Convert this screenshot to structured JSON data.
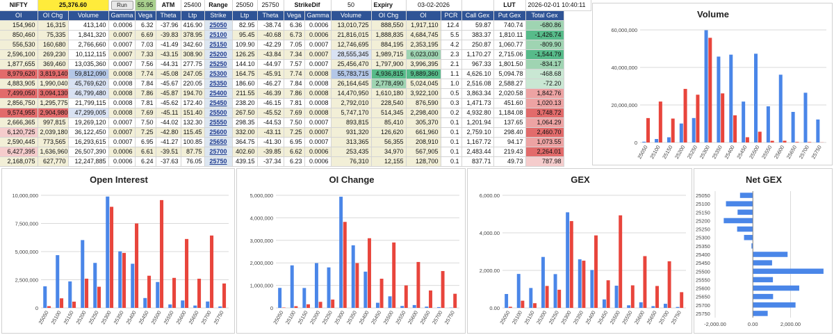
{
  "header": {
    "symbol": "NIFTY",
    "spot": "25,376.60",
    "run_label": "Run",
    "spot_change": "55.95",
    "atm_label": "ATM",
    "atm_value": "25400",
    "range_label": "Range",
    "range_low": "25050",
    "range_high": "25750",
    "strikedif_label": "StrikeDif",
    "strikedif_value": "50",
    "expiry_label": "Expiry",
    "expiry_value": "03-02-2026",
    "lut_label": "LUT",
    "lut_value": "2026-02-01 10:40:11"
  },
  "columns": [
    "OI",
    "OI Chg",
    "Volume",
    "Gamma",
    "Vega",
    "Theta",
    "Ltp",
    "Strike",
    "Ltp",
    "Theta",
    "Vega",
    "Gamma",
    "Volume",
    "OI Chg",
    "OI",
    "PCR",
    "Call Gex",
    "Put Gex",
    "Total Gex"
  ],
  "rows": [
    [
      "154,960",
      "16,315",
      "413,140",
      "0.0006",
      "6.32",
      "-37.96",
      "416.90",
      "25050",
      "82.95",
      "-38.74",
      "6.36",
      "0.0006",
      "13,010,725",
      "888,550",
      "1,917,110",
      "12.4",
      "59.87",
      "740.74",
      "-680.86"
    ],
    [
      "850,460",
      "75,335",
      "1,841,320",
      "0.0007",
      "6.69",
      "-39.83",
      "378.95",
      "25100",
      "95.45",
      "-40.68",
      "6.73",
      "0.0006",
      "21,816,015",
      "1,888,835",
      "4,684,745",
      "5.5",
      "383.37",
      "1,810.11",
      "-1,426.74"
    ],
    [
      "556,530",
      "160,680",
      "2,766,660",
      "0.0007",
      "7.03",
      "-41.49",
      "342.60",
      "25150",
      "109.90",
      "-42.29",
      "7.05",
      "0.0007",
      "12,746,695",
      "884,195",
      "2,353,195",
      "4.2",
      "250.87",
      "1,060.77",
      "-809.90"
    ],
    [
      "2,596,100",
      "269,230",
      "10,112,115",
      "0.0007",
      "7.33",
      "-43.15",
      "308.90",
      "25200",
      "126.25",
      "-43.84",
      "7.34",
      "0.0007",
      "28,555,345",
      "1,989,715",
      "6,023,030",
      "2.3",
      "1,170.27",
      "2,715.06",
      "-1,544.79"
    ],
    [
      "1,877,655",
      "369,460",
      "13,035,360",
      "0.0007",
      "7.56",
      "-44.31",
      "277.75",
      "25250",
      "144.10",
      "-44.97",
      "7.57",
      "0.0007",
      "25,456,470",
      "1,797,900",
      "3,996,395",
      "2.1",
      "967.33",
      "1,801.50",
      "-834.17"
    ],
    [
      "8,979,620",
      "3,819,140",
      "59,812,090",
      "0.0008",
      "7.74",
      "-45.08",
      "247.05",
      "25300",
      "164.75",
      "-45.91",
      "7.74",
      "0.0008",
      "55,783,715",
      "4,936,815",
      "9,889,360",
      "1.1",
      "4,626.10",
      "5,094.78",
      "-468.68"
    ],
    [
      "4,883,905",
      "1,990,040",
      "45,769,620",
      "0.0008",
      "7.84",
      "-45.67",
      "220.05",
      "25350",
      "186.60",
      "-46.27",
      "7.84",
      "0.0008",
      "26,164,645",
      "2,778,490",
      "5,024,045",
      "1.0",
      "2,516.08",
      "2,588.27",
      "-72.20"
    ],
    [
      "7,499,050",
      "3,094,130",
      "46,799,480",
      "0.0008",
      "7.86",
      "-45.87",
      "194.70",
      "25400",
      "211.55",
      "-46.39",
      "7.86",
      "0.0008",
      "14,470,950",
      "1,610,180",
      "3,922,100",
      "0.5",
      "3,863.34",
      "2,020.58",
      "1,842.76"
    ],
    [
      "2,856,750",
      "1,295,775",
      "21,799,115",
      "0.0008",
      "7.81",
      "-45.62",
      "172.40",
      "25450",
      "238.20",
      "-46.15",
      "7.81",
      "0.0008",
      "2,792,010",
      "228,540",
      "876,590",
      "0.3",
      "1,471.73",
      "451.60",
      "1,020.13"
    ],
    [
      "9,574,955",
      "2,904,980",
      "47,299,005",
      "0.0008",
      "7.69",
      "-45.11",
      "151.40",
      "25500",
      "267.50",
      "-45.52",
      "7.69",
      "0.0008",
      "5,747,170",
      "514,345",
      "2,298,400",
      "0.2",
      "4,932.80",
      "1,184.08",
      "3,748.72"
    ],
    [
      "2,666,365",
      "997,815",
      "19,269,120",
      "0.0007",
      "7.50",
      "-44.02",
      "132.30",
      "25550",
      "298.35",
      "-44.53",
      "7.50",
      "0.0007",
      "893,815",
      "85,410",
      "305,370",
      "0.1",
      "1,201.94",
      "137.65",
      "1,064.29"
    ],
    [
      "6,120,725",
      "2,039,180",
      "36,122,450",
      "0.0007",
      "7.25",
      "-42.80",
      "115.45",
      "25600",
      "332.00",
      "-43.11",
      "7.25",
      "0.0007",
      "931,320",
      "126,620",
      "661,960",
      "0.1",
      "2,759.10",
      "298.40",
      "2,460.70"
    ],
    [
      "2,590,445",
      "773,565",
      "16,293,615",
      "0.0007",
      "6.95",
      "-41.27",
      "100.85",
      "25650",
      "364.75",
      "-41.30",
      "6.95",
      "0.0007",
      "313,365",
      "56,355",
      "208,910",
      "0.1",
      "1,167.72",
      "94.17",
      "1,073.55"
    ],
    [
      "6,427,395",
      "1,636,960",
      "26,507,390",
      "0.0006",
      "6.61",
      "-39.51",
      "87.75",
      "25700",
      "402.60",
      "-39.85",
      "6.62",
      "0.0006",
      "253,435",
      "34,970",
      "567,905",
      "0.1",
      "2,483.44",
      "219.43",
      "2,264.01"
    ],
    [
      "2,168,075",
      "627,770",
      "12,247,885",
      "0.0006",
      "6.24",
      "-37.63",
      "76.05",
      "25750",
      "439.15",
      "-37.34",
      "6.23",
      "0.0006",
      "76,310",
      "12,155",
      "128,700",
      "0.1",
      "837.71",
      "49.73",
      "787.98"
    ]
  ],
  "colors": {
    "call": "#4a86e8",
    "put": "#e8453c",
    "header": "#2f5496",
    "grid": "#d9d9d9"
  },
  "chart_data": [
    {
      "type": "bar",
      "title": "Volume",
      "categories": [
        "25050",
        "25100",
        "25150",
        "25200",
        "25250",
        "25300",
        "25350",
        "25400",
        "25450",
        "25500",
        "25550",
        "25600",
        "25650",
        "25700",
        "25750"
      ],
      "series": [
        {
          "values": [
            413140,
            1841320,
            2766660,
            10112115,
            13035360,
            59812090,
            45769620,
            46799480,
            21799115,
            47299005,
            19269120,
            36122450,
            16293615,
            26507390,
            12247885
          ]
        },
        {
          "values": [
            13010725,
            21816015,
            12746695,
            28555345,
            25456470,
            55783715,
            26164645,
            14470950,
            2792010,
            5747170,
            893815,
            931320,
            313365,
            253435,
            76310
          ]
        }
      ],
      "ylim": [
        0,
        60000000
      ],
      "yticks": [
        "0",
        "20,000,000",
        "40,000,000",
        "60,000,000"
      ],
      "tickvals": [
        0,
        20000000,
        40000000,
        60000000
      ]
    },
    {
      "type": "bar",
      "title": "Open Interest",
      "categories": [
        "25050",
        "25100",
        "25150",
        "25200",
        "25250",
        "25300",
        "25350",
        "25400",
        "25450",
        "25500",
        "25550",
        "25600",
        "25650",
        "25700",
        "25750"
      ],
      "series": [
        {
          "values": [
            1917110,
            4684745,
            2353195,
            6023030,
            3996395,
            9889360,
            5024045,
            3922100,
            876590,
            2298400,
            305370,
            661960,
            208910,
            567905,
            128700
          ]
        },
        {
          "values": [
            154960,
            850460,
            556530,
            2596100,
            1877655,
            8979620,
            4883905,
            7499050,
            2856750,
            9574955,
            2666365,
            6120725,
            2590445,
            6427395,
            2168075
          ]
        }
      ],
      "ylim": [
        0,
        10000000
      ],
      "yticks": [
        "0",
        "2,500,000",
        "5,000,000",
        "7,500,000",
        "10,000,000"
      ],
      "tickvals": [
        0,
        2500000,
        5000000,
        7500000,
        10000000
      ]
    },
    {
      "type": "bar",
      "title": "OI Change",
      "categories": [
        "25050",
        "25100",
        "25150",
        "25200",
        "25250",
        "25300",
        "25350",
        "25400",
        "25450",
        "25500",
        "25550",
        "25600",
        "25650",
        "25700",
        "25750"
      ],
      "series": [
        {
          "values": [
            888550,
            1888835,
            884195,
            1989715,
            1797900,
            4936815,
            2778490,
            1610180,
            228540,
            514345,
            85410,
            126620,
            56355,
            34970,
            12155
          ]
        },
        {
          "values": [
            16315,
            75335,
            160680,
            269230,
            369460,
            3819140,
            1990040,
            3094130,
            1295775,
            2904980,
            997815,
            2039180,
            773565,
            1636960,
            627770
          ]
        }
      ],
      "ylim": [
        0,
        5000000
      ],
      "yticks": [
        "0",
        "1,000,000",
        "2,000,000",
        "3,000,000",
        "4,000,000",
        "5,000,000"
      ],
      "tickvals": [
        0,
        1000000,
        2000000,
        3000000,
        4000000,
        5000000
      ]
    },
    {
      "type": "bar",
      "title": "GEX",
      "categories": [
        "25050",
        "25100",
        "25150",
        "25200",
        "25250",
        "25300",
        "25350",
        "25400",
        "25450",
        "25500",
        "25550",
        "25600",
        "25650",
        "25700",
        "25750"
      ],
      "series": [
        {
          "values": [
            740.74,
            1810.11,
            1060.77,
            2715.06,
            1801.5,
            5094.78,
            2588.27,
            2020.58,
            451.6,
            1184.08,
            137.65,
            298.4,
            94.17,
            219.43,
            49.73
          ]
        },
        {
          "values": [
            59.87,
            383.37,
            250.87,
            1170.27,
            967.33,
            4626.1,
            2516.08,
            3863.34,
            1471.73,
            4932.8,
            1201.94,
            2759.1,
            1167.72,
            2483.44,
            837.71
          ]
        }
      ],
      "ylim": [
        0,
        6000
      ],
      "yticks": [
        "0.00",
        "2,000.00",
        "4,000.00",
        "6,000.00"
      ],
      "tickvals": [
        0,
        2000,
        4000,
        6000
      ]
    },
    {
      "type": "bar",
      "orientation": "horizontal",
      "title": "Net GEX",
      "categories": [
        "25050",
        "25100",
        "25150",
        "25200",
        "25250",
        "25300",
        "25350",
        "25400",
        "25450",
        "25500",
        "25550",
        "25600",
        "25650",
        "25700",
        "25750"
      ],
      "series": [
        {
          "values": [
            -680.86,
            -1426.74,
            -809.9,
            -1544.79,
            -834.17,
            -468.68,
            -72.2,
            1842.76,
            1020.13,
            3748.72,
            1064.29,
            2460.7,
            1073.55,
            2264.01,
            787.98
          ]
        }
      ],
      "xlim": [
        -2000,
        3900
      ],
      "xticks": [
        "-2,000.00",
        "0.00",
        "2,000.00"
      ],
      "tickvals": [
        -2000,
        0,
        2000
      ]
    }
  ]
}
